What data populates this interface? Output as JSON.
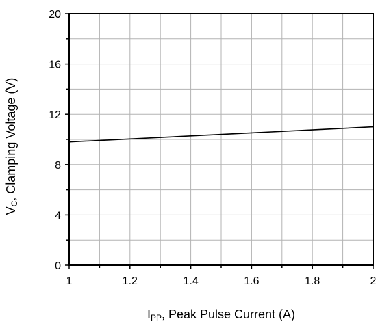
{
  "chart_data": {
    "type": "line",
    "x": [
      1.0,
      1.2,
      1.4,
      1.6,
      1.8,
      2.0
    ],
    "series": [
      {
        "values": [
          9.8,
          10.04,
          10.28,
          10.52,
          10.76,
          11.0
        ]
      }
    ],
    "xlim": [
      1,
      2
    ],
    "ylim": [
      0,
      20
    ],
    "x_ticks": [
      "1",
      "1.2",
      "1.4",
      "1.6",
      "1.8",
      "2"
    ],
    "y_ticks": [
      "0",
      "4",
      "8",
      "12",
      "16",
      "20"
    ],
    "xlabel": {
      "main": "I",
      "sub": "PP",
      "rest": ", Peak Pulse Current (A)"
    },
    "ylabel": {
      "main": "V",
      "sub": "C",
      "rest": ", Clamping Voltage (V)"
    },
    "grid": true,
    "legend": "none",
    "colors": {
      "line": "#000000",
      "grid": "#b3b3b3",
      "frame": "#000000"
    }
  }
}
